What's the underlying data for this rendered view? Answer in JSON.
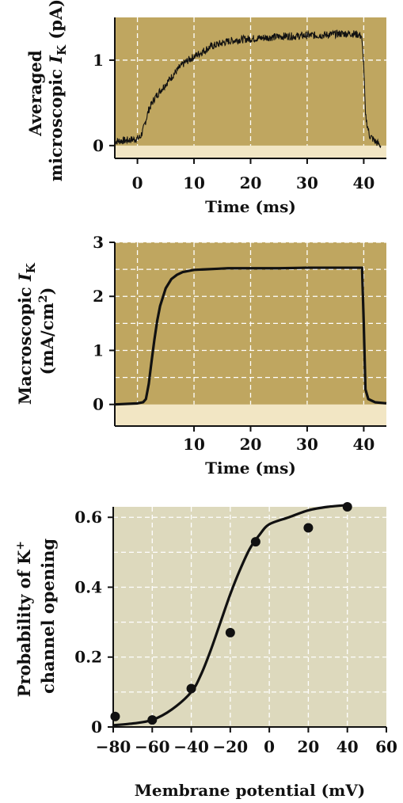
{
  "colors": {
    "panel_fill": "#bfa660",
    "baseline_band": "#f2e6c4",
    "panel3_fill": "#ddd9bd",
    "grid": "#ffffff",
    "trace": "#111111",
    "axis": "#111111"
  },
  "chart_data": [
    {
      "type": "line",
      "ylabel_line1": "Averaged",
      "ylabel_line2_prefix": "microscopic ",
      "ylabel_italic": "I",
      "ylabel_sub": "K",
      "ylabel_unit": " (pA)",
      "xlabel": "Time (ms)",
      "xlim": [
        -4,
        44
      ],
      "ylim": [
        -0.15,
        1.5
      ],
      "xticks": [
        0,
        10,
        20,
        30,
        40
      ],
      "yticks": [
        0,
        1
      ],
      "grid": true,
      "series": [
        {
          "x": [
            -4,
            -2,
            0,
            0.5,
            1,
            2,
            3,
            4,
            5,
            6,
            7,
            8,
            9,
            10,
            11,
            12,
            13,
            14,
            15,
            16,
            18,
            20,
            22,
            24,
            26,
            28,
            30,
            32,
            34,
            36,
            38,
            39,
            39.6,
            40,
            40.3,
            41,
            42,
            43
          ],
          "y": [
            0.05,
            0.06,
            0.08,
            0.1,
            0.18,
            0.42,
            0.55,
            0.64,
            0.72,
            0.8,
            0.88,
            0.95,
            1.0,
            1.04,
            1.08,
            1.12,
            1.16,
            1.18,
            1.2,
            1.22,
            1.24,
            1.25,
            1.26,
            1.27,
            1.28,
            1.28,
            1.29,
            1.29,
            1.3,
            1.31,
            1.31,
            1.3,
            1.28,
            0.95,
            0.35,
            0.12,
            0.05,
            0.0
          ]
        }
      ]
    },
    {
      "type": "line",
      "ylabel_line1_prefix": "Macroscopic ",
      "ylabel_italic": "I",
      "ylabel_sub": "K",
      "ylabel_line2": "(mA/cm",
      "ylabel_line2_sup": "2",
      "ylabel_line2_end": ")",
      "xlabel": "Time (ms)",
      "xlim": [
        -4,
        44
      ],
      "ylim": [
        -0.4,
        3
      ],
      "xticks": [
        10,
        20,
        30,
        40
      ],
      "yticks": [
        0,
        1,
        2,
        3
      ],
      "grid": true,
      "series": [
        {
          "x": [
            -4,
            0,
            1,
            1.5,
            2,
            2.5,
            3,
            3.5,
            4,
            5,
            6,
            7,
            8,
            9,
            10,
            12,
            14,
            16,
            20,
            25,
            30,
            35,
            39.7,
            40.0,
            40.3,
            40.8,
            42,
            44
          ],
          "y": [
            0.0,
            0.02,
            0.04,
            0.1,
            0.38,
            0.8,
            1.2,
            1.55,
            1.82,
            2.15,
            2.32,
            2.4,
            2.45,
            2.47,
            2.49,
            2.5,
            2.51,
            2.52,
            2.52,
            2.52,
            2.53,
            2.53,
            2.53,
            1.5,
            0.28,
            0.1,
            0.04,
            0.02
          ]
        }
      ]
    },
    {
      "type": "scatter",
      "ylabel_line1_prefix": "Probability of K",
      "ylabel_line1_sup": "+",
      "ylabel_line2": "channel opening",
      "xlabel": "Membrane potential (mV)",
      "xlim": [
        -80,
        60
      ],
      "ylim": [
        0,
        0.63
      ],
      "xticks": [
        -80,
        -60,
        -40,
        -20,
        0,
        20,
        40,
        60
      ],
      "xticklabels": [
        "−80",
        "−60",
        "−40",
        "−20",
        "0",
        "20",
        "40",
        "60"
      ],
      "yticks": [
        0,
        0.2,
        0.4,
        0.6
      ],
      "yticklabels": [
        "0",
        "0.2",
        "0.4",
        "0.6"
      ],
      "grid": true,
      "points": {
        "x": [
          -79,
          -60,
          -40,
          -20,
          -7,
          20,
          40
        ],
        "y": [
          0.03,
          0.02,
          0.11,
          0.27,
          0.53,
          0.57,
          0.63
        ]
      },
      "fit": {
        "x": [
          -80,
          -70,
          -60,
          -50,
          -40,
          -35,
          -30,
          -25,
          -20,
          -15,
          -10,
          -5,
          0,
          10,
          20,
          30,
          40
        ],
        "y": [
          0.005,
          0.01,
          0.02,
          0.05,
          0.1,
          0.15,
          0.22,
          0.3,
          0.38,
          0.45,
          0.51,
          0.55,
          0.58,
          0.6,
          0.62,
          0.63,
          0.635
        ]
      }
    }
  ]
}
